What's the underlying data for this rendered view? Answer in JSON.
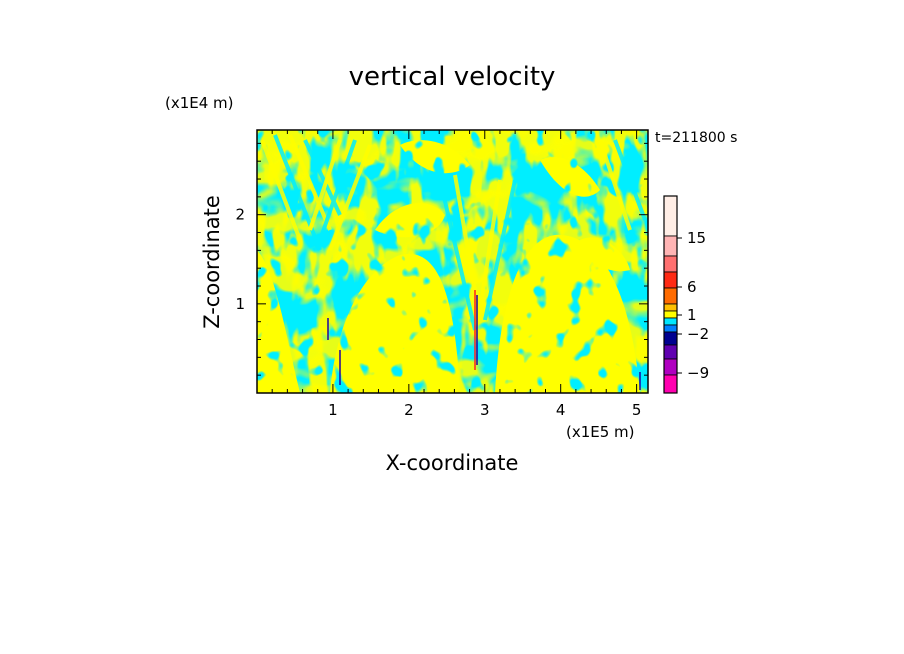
{
  "chart_data": {
    "type": "heatmap",
    "title": "vertical velocity",
    "xlabel": "X-coordinate",
    "ylabel": "Z-coordinate",
    "x_unit": "(x1E5 m)",
    "y_unit": "(x1E4 m)",
    "time_label": "t=211800 s",
    "xlim": [
      0,
      5.15
    ],
    "ylim": [
      0,
      2.95
    ],
    "x_ticks": [
      1,
      2,
      3,
      4,
      5
    ],
    "y_ticks": [
      1,
      2
    ],
    "colorbar": {
      "tick_labels": [
        "15",
        "6",
        "1",
        "−2",
        "−9"
      ],
      "colors": [
        "#ffeee6",
        "#ffb4b4",
        "#ff7070",
        "#ff2a14",
        "#ff6b00",
        "#ffc000",
        "#ffff00",
        "#00e6ff",
        "#0080ff",
        "#000090",
        "#6000b0",
        "#b000c0",
        "#ff00b0"
      ]
    },
    "series_colors": {
      "positive": "#ffff00",
      "negative": "#00eeff",
      "strong_positive": "#ff2020",
      "strong_negative": "#2000a0"
    }
  }
}
